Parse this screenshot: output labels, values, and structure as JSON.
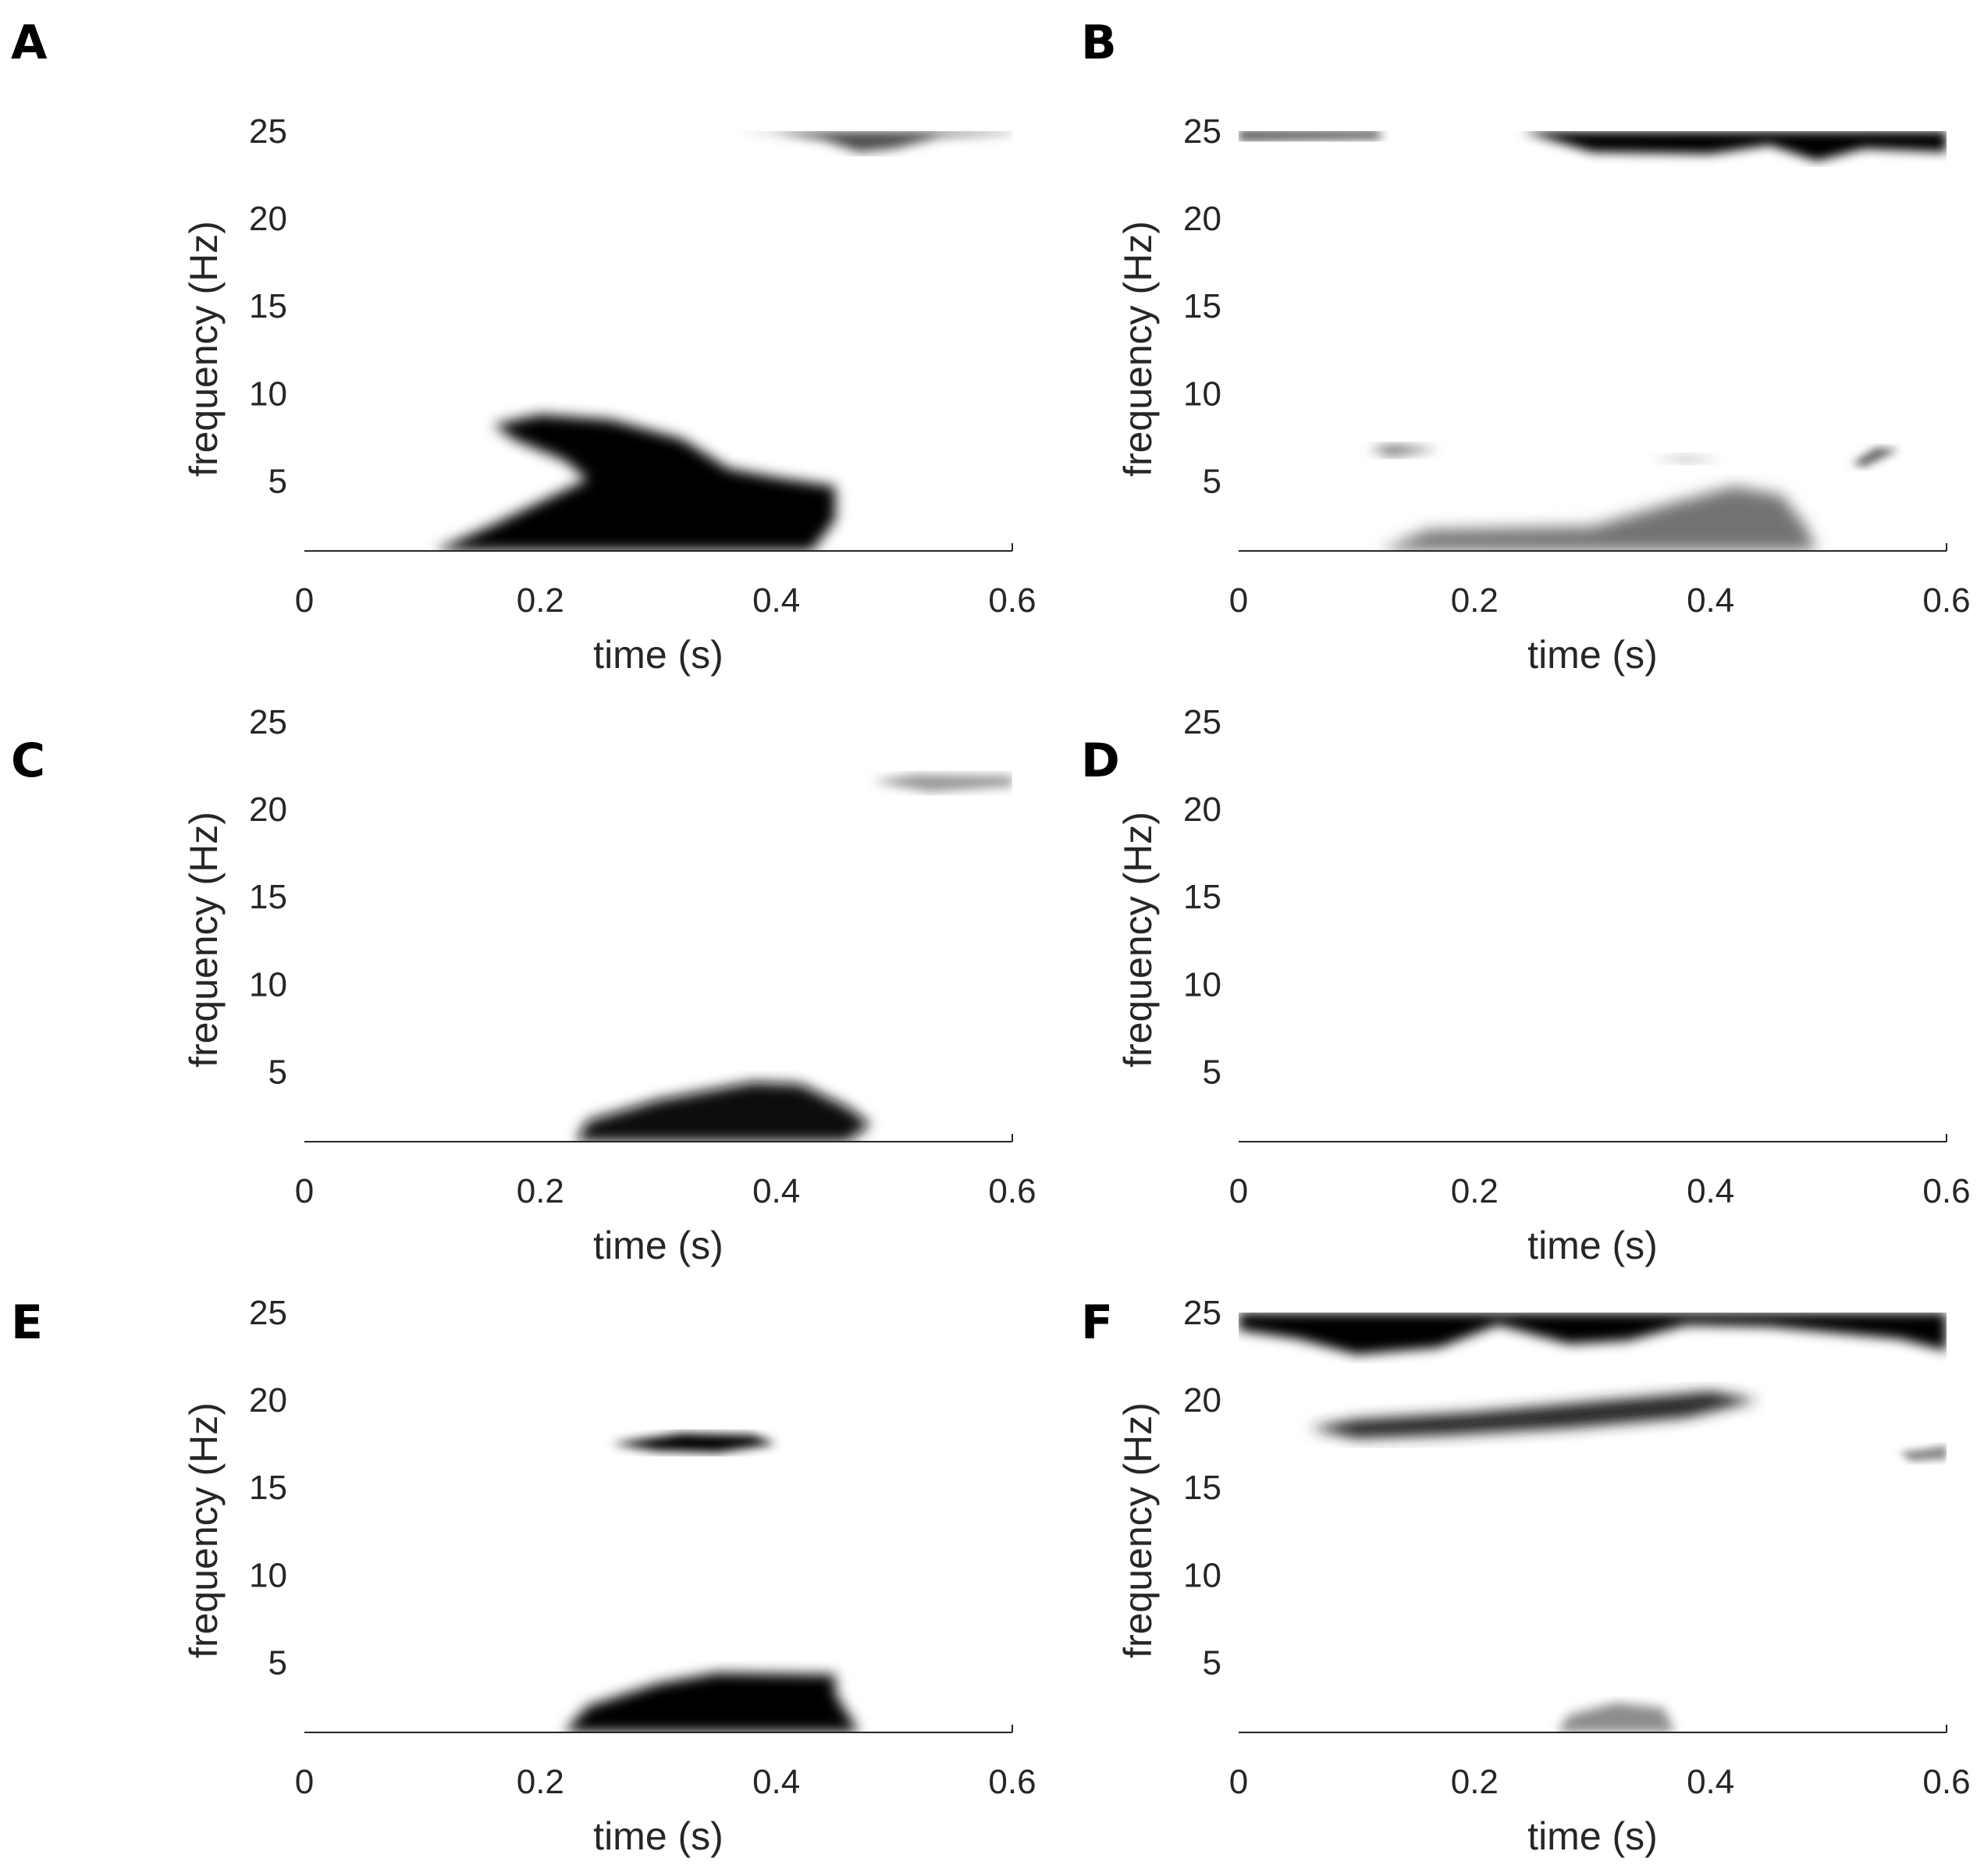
{
  "chart_data": [
    {
      "type": "heatmap",
      "panel_label": "A",
      "xlabel": "time (s)",
      "ylabel": "frequency (Hz)",
      "xlim": [
        0,
        0.6
      ],
      "ylim": [
        1,
        25
      ],
      "x_ticks": [
        0,
        0.2,
        0.4,
        0.6
      ],
      "x_tick_labels": [
        "0",
        "0.2",
        "0.4",
        "0.6"
      ],
      "y_ticks": [
        5,
        10,
        15,
        20,
        25
      ],
      "y_tick_labels": [
        "5",
        "10",
        "15",
        "20",
        "25"
      ],
      "colormap": "gray-reversed",
      "colors": {
        "low": "#ffffff",
        "high": "#000000"
      },
      "regions": [
        {
          "polygon": [
            [
              0.11,
              1
            ],
            [
              0.16,
              2.5
            ],
            [
              0.2,
              3.8
            ],
            [
              0.24,
              5.1
            ],
            [
              0.22,
              6.2
            ],
            [
              0.18,
              7.3
            ],
            [
              0.16,
              8.2
            ],
            [
              0.2,
              8.8
            ],
            [
              0.26,
              8.5
            ],
            [
              0.32,
              7.4
            ],
            [
              0.36,
              5.7
            ],
            [
              0.4,
              5.2
            ],
            [
              0.45,
              4.7
            ],
            [
              0.45,
              2.8
            ],
            [
              0.43,
              1
            ]
          ],
          "intensity": 1.0,
          "blur": 0.6
        },
        {
          "polygon": [
            [
              0.37,
              25
            ],
            [
              0.6,
              25
            ],
            [
              0.6,
              24.9
            ],
            [
              0.54,
              24.7
            ],
            [
              0.5,
              24
            ],
            [
              0.47,
              23.8
            ],
            [
              0.44,
              24.5
            ],
            [
              0.4,
              24.9
            ]
          ],
          "intensity": 0.7,
          "blur": 0.5
        }
      ]
    },
    {
      "type": "heatmap",
      "panel_label": "B",
      "xlabel": "time (s)",
      "ylabel": "frequency (Hz)",
      "xlim": [
        0,
        0.6
      ],
      "ylim": [
        1,
        25
      ],
      "x_ticks": [
        0,
        0.2,
        0.4,
        0.6
      ],
      "x_tick_labels": [
        "0",
        "0.2",
        "0.4",
        "0.6"
      ],
      "y_ticks": [
        5,
        10,
        15,
        20,
        25
      ],
      "y_tick_labels": [
        "5",
        "10",
        "15",
        "20",
        "25"
      ],
      "colormap": "gray-reversed",
      "colors": {
        "low": "#ffffff",
        "high": "#000000"
      },
      "regions": [
        {
          "polygon": [
            [
              0,
              25
            ],
            [
              0.12,
              25
            ],
            [
              0.12,
              24.6
            ],
            [
              0,
              24.5
            ]
          ],
          "intensity": 0.85,
          "blur": 0.45
        },
        {
          "polygon": [
            [
              0.24,
              25
            ],
            [
              0.6,
              25
            ],
            [
              0.6,
              23.8
            ],
            [
              0.53,
              24
            ],
            [
              0.49,
              23.3
            ],
            [
              0.45,
              24.2
            ],
            [
              0.4,
              23.7
            ],
            [
              0.3,
              23.8
            ]
          ],
          "intensity": 1.0,
          "blur": 0.5
        },
        {
          "polygon": [
            [
              0.12,
              1
            ],
            [
              0.16,
              2.2
            ],
            [
              0.3,
              2.4
            ],
            [
              0.36,
              3.6
            ],
            [
              0.42,
              4.7
            ],
            [
              0.46,
              4.2
            ],
            [
              0.48,
              2.5
            ],
            [
              0.49,
              1
            ]
          ],
          "intensity": 0.55,
          "blur": 0.7
        },
        {
          "polygon": [
            [
              0.11,
              6.8
            ],
            [
              0.13,
              7.1
            ],
            [
              0.17,
              6.8
            ],
            [
              0.13,
              6.4
            ]
          ],
          "intensity": 0.5,
          "blur": 0.5
        },
        {
          "polygon": [
            [
              0.35,
              6.3
            ],
            [
              0.38,
              6.5
            ],
            [
              0.41,
              6.2
            ],
            [
              0.38,
              6.0
            ]
          ],
          "intensity": 0.2,
          "blur": 0.5
        },
        {
          "polygon": [
            [
              0.52,
              6.0
            ],
            [
              0.54,
              6.9
            ],
            [
              0.56,
              6.8
            ],
            [
              0.53,
              5.8
            ]
          ],
          "intensity": 0.6,
          "blur": 0.4
        }
      ]
    },
    {
      "type": "heatmap",
      "panel_label": "C",
      "xlabel": "time (s)",
      "ylabel": "frequency (Hz)",
      "xlim": [
        0,
        0.6
      ],
      "ylim": [
        1,
        25
      ],
      "x_ticks": [
        0,
        0.2,
        0.4,
        0.6
      ],
      "x_tick_labels": [
        "0",
        "0.2",
        "0.4",
        "0.6"
      ],
      "y_ticks": [
        5,
        10,
        15,
        20,
        25
      ],
      "y_tick_labels": [
        "5",
        "10",
        "15",
        "20",
        "25"
      ],
      "colormap": "gray-reversed",
      "colors": {
        "low": "#ffffff",
        "high": "#000000"
      },
      "regions": [
        {
          "polygon": [
            [
              0.23,
              1
            ],
            [
              0.24,
              2.2
            ],
            [
              0.3,
              3.4
            ],
            [
              0.38,
              4.4
            ],
            [
              0.42,
              4.3
            ],
            [
              0.46,
              3.0
            ],
            [
              0.48,
              2.0
            ],
            [
              0.46,
              1
            ]
          ],
          "intensity": 0.95,
          "blur": 0.6
        },
        {
          "polygon": [
            [
              0.48,
              21.6
            ],
            [
              0.52,
              22
            ],
            [
              0.6,
              21.9
            ],
            [
              0.6,
              21.3
            ],
            [
              0.53,
              21.0
            ]
          ],
          "intensity": 0.4,
          "blur": 0.45
        }
      ]
    },
    {
      "type": "heatmap",
      "panel_label": "D",
      "xlabel": "time (s)",
      "ylabel": "frequency (Hz)",
      "xlim": [
        0,
        0.6
      ],
      "ylim": [
        1,
        25
      ],
      "x_ticks": [
        0,
        0.2,
        0.4,
        0.6
      ],
      "x_tick_labels": [
        "0",
        "0.2",
        "0.4",
        "0.6"
      ],
      "y_ticks": [
        5,
        10,
        15,
        20,
        25
      ],
      "y_tick_labels": [
        "5",
        "10",
        "15",
        "20",
        "25"
      ],
      "colormap": "gray-reversed",
      "colors": {
        "low": "#ffffff",
        "high": "#000000"
      },
      "regions": []
    },
    {
      "type": "heatmap",
      "panel_label": "E",
      "xlabel": "time (s)",
      "ylabel": "frequency (Hz)",
      "xlim": [
        0,
        0.6
      ],
      "ylim": [
        1,
        25
      ],
      "x_ticks": [
        0,
        0.2,
        0.4,
        0.6
      ],
      "x_tick_labels": [
        "0",
        "0.2",
        "0.4",
        "0.6"
      ],
      "y_ticks": [
        5,
        10,
        15,
        20,
        25
      ],
      "y_tick_labels": [
        "5",
        "10",
        "15",
        "20",
        "25"
      ],
      "colormap": "gray-reversed",
      "colors": {
        "low": "#ffffff",
        "high": "#000000"
      },
      "regions": [
        {
          "polygon": [
            [
              0.22,
              1
            ],
            [
              0.24,
              2.5
            ],
            [
              0.3,
              3.8
            ],
            [
              0.35,
              4.4
            ],
            [
              0.45,
              4.3
            ],
            [
              0.45,
              3.2
            ],
            [
              0.47,
              1
            ]
          ],
          "intensity": 1.0,
          "blur": 0.6
        },
        {
          "polygon": [
            [
              0.26,
              17.5
            ],
            [
              0.32,
              18.1
            ],
            [
              0.38,
              18.0
            ],
            [
              0.4,
              17.5
            ],
            [
              0.35,
              17.0
            ],
            [
              0.3,
              17.1
            ]
          ],
          "intensity": 1.0,
          "blur": 0.45
        }
      ]
    },
    {
      "type": "heatmap",
      "panel_label": "F",
      "xlabel": "time (s)",
      "ylabel": "frequency (Hz)",
      "xlim": [
        0,
        0.6
      ],
      "ylim": [
        1,
        25
      ],
      "x_ticks": [
        0,
        0.2,
        0.4,
        0.6
      ],
      "x_tick_labels": [
        "0",
        "0.2",
        "0.4",
        "0.6"
      ],
      "y_ticks": [
        5,
        10,
        15,
        20,
        25
      ],
      "y_tick_labels": [
        "5",
        "10",
        "15",
        "20",
        "25"
      ],
      "colormap": "gray-reversed",
      "colors": {
        "low": "#ffffff",
        "high": "#000000"
      },
      "regions": [
        {
          "polygon": [
            [
              0,
              25
            ],
            [
              0.6,
              25
            ],
            [
              0.6,
              22.8
            ],
            [
              0.56,
              23.5
            ],
            [
              0.45,
              24.2
            ],
            [
              0.38,
              24.3
            ],
            [
              0.33,
              23.4
            ],
            [
              0.28,
              23.2
            ],
            [
              0.22,
              24.3
            ],
            [
              0.17,
              23.0
            ],
            [
              0.1,
              22.6
            ],
            [
              0.05,
              23.5
            ],
            [
              0,
              24.0
            ]
          ],
          "intensity": 1.0,
          "blur": 0.55
        },
        {
          "polygon": [
            [
              0.06,
              18.4
            ],
            [
              0.1,
              18.9
            ],
            [
              0.2,
              19.3
            ],
            [
              0.3,
              19.9
            ],
            [
              0.4,
              20.5
            ],
            [
              0.44,
              20.0
            ],
            [
              0.38,
              19.0
            ],
            [
              0.28,
              18.4
            ],
            [
              0.18,
              18.0
            ],
            [
              0.1,
              17.8
            ]
          ],
          "intensity": 0.85,
          "blur": 0.6
        },
        {
          "polygon": [
            [
              0.27,
              1
            ],
            [
              0.28,
              2.0
            ],
            [
              0.32,
              2.7
            ],
            [
              0.36,
              2.4
            ],
            [
              0.37,
              1
            ]
          ],
          "intensity": 0.45,
          "blur": 0.5
        },
        {
          "polygon": [
            [
              0.56,
              17.0
            ],
            [
              0.6,
              17.4
            ],
            [
              0.6,
              16.6
            ],
            [
              0.57,
              16.5
            ]
          ],
          "intensity": 0.45,
          "blur": 0.35
        }
      ]
    }
  ]
}
